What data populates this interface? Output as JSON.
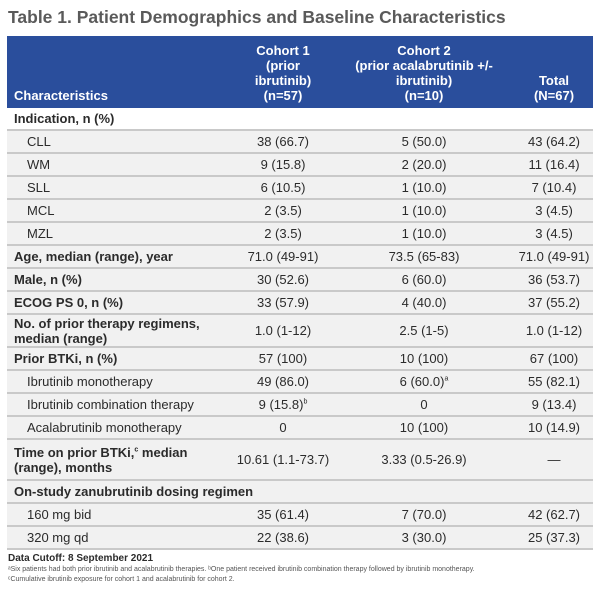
{
  "title": "Table 1. Patient Demographics and Baseline Characteristics",
  "header": {
    "characteristics": "Characteristics",
    "cohort1": [
      "Cohort 1",
      "(prior",
      "ibrutinib)",
      "(n=57)"
    ],
    "cohort2": [
      "Cohort 2",
      "(prior acalabrutinib +/-",
      "ibrutinib)",
      "(n=10)"
    ],
    "total": [
      "Total",
      "(N=67)"
    ]
  },
  "rows": [
    {
      "label": "Indication, n (%)",
      "c1": "",
      "c2": "",
      "t": "",
      "type": "section"
    },
    {
      "label": "CLL",
      "c1": "38 (66.7)",
      "c2": "5 (50.0)",
      "t": "43 (64.2)",
      "type": "sub"
    },
    {
      "label": "WM",
      "c1": "9 (15.8)",
      "c2": "2 (20.0)",
      "t": "11 (16.4)",
      "type": "sub"
    },
    {
      "label": "SLL",
      "c1": "6 (10.5)",
      "c2": "1 (10.0)",
      "t": "7 (10.4)",
      "type": "sub"
    },
    {
      "label": "MCL",
      "c1": "2 (3.5)",
      "c2": "1 (10.0)",
      "t": "3 (4.5)",
      "type": "sub"
    },
    {
      "label": "MZL",
      "c1": "2 (3.5)",
      "c2": "1 (10.0)",
      "t": "3 (4.5)",
      "type": "sub"
    },
    {
      "label": "Age, median (range), year",
      "c1": "71.0 (49-91)",
      "c2": "73.5 (65-83)",
      "t": "71.0 (49-91)",
      "type": "bold"
    },
    {
      "label": "Male, n (%)",
      "c1": "30 (52.6)",
      "c2": "6 (60.0)",
      "t": "36 (53.7)",
      "type": "bold"
    },
    {
      "label": "ECOG PS 0, n (%)",
      "c1": "33 (57.9)",
      "c2": "4 (40.0)",
      "t": "37 (55.2)",
      "type": "bold"
    },
    {
      "label": "No. of prior therapy regimens, median (range)",
      "c1": "1.0 (1-12)",
      "c2": "2.5 (1-5)",
      "t": "1.0 (1-12)",
      "type": "bold"
    },
    {
      "label": "Prior BTKi, n (%)",
      "c1": "57 (100)",
      "c2": "10 (100)",
      "t": "67 (100)",
      "type": "bold"
    },
    {
      "label": "Ibrutinib monotherapy",
      "c1": "49 (86.0)",
      "c2": "6 (60.0)",
      "c2_sup": "a",
      "t": "55 (82.1)",
      "type": "sub"
    },
    {
      "label": "Ibrutinib combination therapy",
      "c1": "9 (15.8)",
      "c1_sup": "b",
      "c2": "0",
      "t": "9 (13.4)",
      "type": "sub"
    },
    {
      "label": "Acalabrutinib monotherapy",
      "c1": "0",
      "c2": "10 (100)",
      "t": "10 (14.9)",
      "type": "sub"
    },
    {
      "label": "Time on prior BTKi,",
      "label_sup": "c",
      "label_rest": " median (range), months",
      "c1": "10.61 (1.1-73.7)",
      "c2": "3.33 (0.5-26.9)",
      "t": "—",
      "type": "bold"
    },
    {
      "label": "On-study zanubrutinib dosing regimen",
      "c1": "",
      "c2": "",
      "t": "",
      "type": "bold"
    },
    {
      "label": "160 mg bid",
      "c1": "35 (61.4)",
      "c2": "7 (70.0)",
      "t": "42 (62.7)",
      "type": "sub"
    },
    {
      "label": "320 mg qd",
      "c1": "22 (38.6)",
      "c2": "3 (30.0)",
      "t": "25 (37.3)",
      "type": "sub"
    }
  ],
  "footer": {
    "cutoff": "Data Cutoff: 8 September 2021",
    "note1": "ᵃSix patients had both prior ibrutinib and acalabrutinib therapies. ᵇOne patient received ibrutinib combination therapy followed by ibrutinib monotherapy.",
    "note2": "ᶜCumulative ibrutinib exposure for cohort 1 and acalabrutinib for cohort 2."
  },
  "colors": {
    "header_bg": "#2a4e9c",
    "row_bg": "#f1f1f1",
    "title": "#5a5a5a"
  }
}
